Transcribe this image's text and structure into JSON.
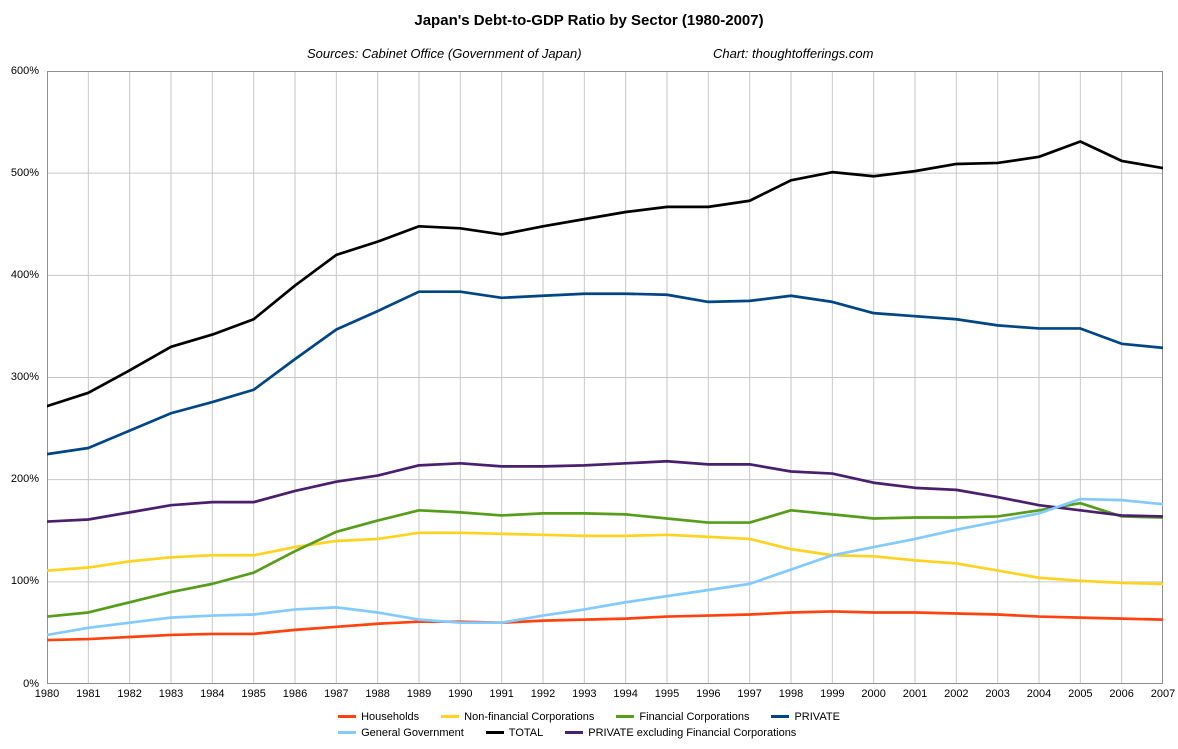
{
  "title": "Japan's Debt-to-GDP Ratio by Sector (1980-2007)",
  "subtitle_left": "Sources: Cabinet Office (Government of Japan)",
  "subtitle_right": "Chart: thoughtofferings.com",
  "chart_data": {
    "type": "line",
    "x": [
      1980,
      1981,
      1982,
      1983,
      1984,
      1985,
      1986,
      1987,
      1988,
      1989,
      1990,
      1991,
      1992,
      1993,
      1994,
      1995,
      1996,
      1997,
      1998,
      1999,
      2000,
      2001,
      2002,
      2003,
      2004,
      2005,
      2006,
      2007
    ],
    "ylim": [
      0,
      600
    ],
    "ytick_interval": 100,
    "ytick_suffix": "%",
    "grid": true,
    "legend_position": "bottom",
    "gridline_color": "#c6c6c6",
    "border_color": "#8f8f8f",
    "series": [
      {
        "name": "Households",
        "color": "#FF420E",
        "values": [
          43,
          44,
          46,
          48,
          49,
          49,
          53,
          56,
          59,
          61,
          61,
          60,
          62,
          63,
          64,
          66,
          67,
          68,
          70,
          71,
          70,
          70,
          69,
          68,
          66,
          65,
          64,
          63
        ]
      },
      {
        "name": "Non-financial Corporations",
        "color": "#FFD320",
        "values": [
          111,
          114,
          120,
          124,
          126,
          126,
          134,
          140,
          142,
          148,
          148,
          147,
          146,
          145,
          145,
          146,
          144,
          142,
          132,
          126,
          125,
          121,
          118,
          111,
          104,
          101,
          99,
          98
        ]
      },
      {
        "name": "Financial Corporations",
        "color": "#579D1C",
        "values": [
          66,
          70,
          80,
          90,
          98,
          109,
          130,
          149,
          160,
          170,
          168,
          165,
          167,
          167,
          166,
          162,
          158,
          158,
          170,
          166,
          162,
          163,
          163,
          164,
          170,
          177,
          164,
          163
        ]
      },
      {
        "name": "PRIVATE excluding Financial Corporations",
        "color": "#4B1F6F",
        "values": [
          159,
          161,
          168,
          175,
          178,
          178,
          189,
          198,
          204,
          214,
          216,
          213,
          213,
          214,
          216,
          218,
          215,
          215,
          208,
          206,
          197,
          192,
          190,
          183,
          175,
          170,
          165,
          164
        ]
      },
      {
        "name": "General Government",
        "color": "#83CAFF",
        "values": [
          48,
          55,
          60,
          65,
          67,
          68,
          73,
          75,
          70,
          63,
          60,
          60,
          67,
          73,
          80,
          86,
          92,
          98,
          112,
          126,
          134,
          142,
          151,
          159,
          167,
          181,
          180,
          176
        ]
      },
      {
        "name": "PRIVATE",
        "color": "#004586",
        "values": [
          225,
          231,
          248,
          265,
          276,
          288,
          318,
          347,
          365,
          384,
          384,
          378,
          380,
          382,
          382,
          381,
          374,
          375,
          380,
          374,
          363,
          360,
          357,
          351,
          348,
          348,
          333,
          329
        ]
      },
      {
        "name": "TOTAL",
        "color": "#000000",
        "values": [
          272,
          285,
          307,
          330,
          342,
          357,
          390,
          420,
          433,
          448,
          446,
          440,
          448,
          455,
          462,
          467,
          467,
          473,
          493,
          501,
          497,
          502,
          509,
          510,
          516,
          531,
          512,
          505
        ]
      }
    ],
    "legend_rows": [
      [
        "Households",
        "Non-financial Corporations",
        "Financial Corporations",
        "PRIVATE"
      ],
      [
        "General Government",
        "TOTAL",
        "PRIVATE excluding Financial Corporations"
      ]
    ]
  }
}
